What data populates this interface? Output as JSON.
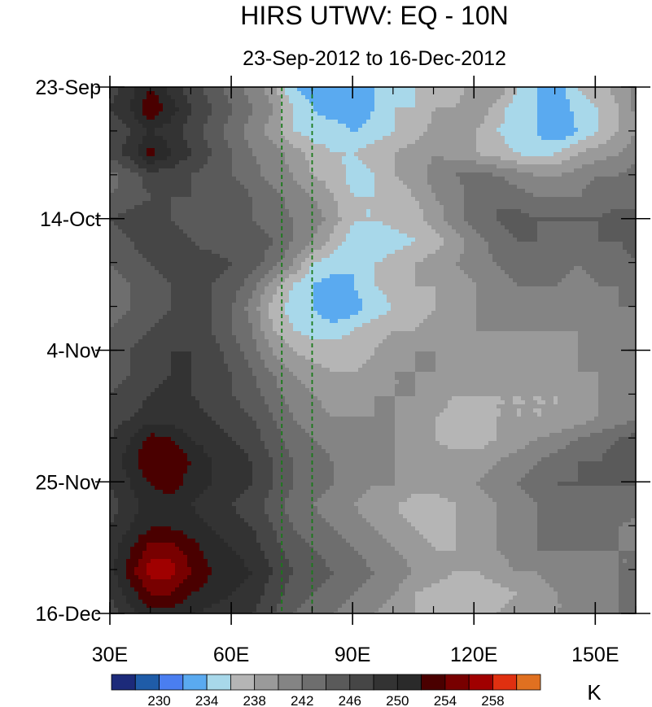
{
  "chart_data": {
    "type": "heatmap",
    "title": "HIRS UTWV: EQ - 10N",
    "subtitle": "23-Sep-2012 to 16-Dec-2012",
    "x_axis": {
      "range": [
        30,
        160
      ],
      "unit": "degrees East",
      "ticks": [
        {
          "value": 30,
          "label": "30E"
        },
        {
          "value": 60,
          "label": "60E"
        },
        {
          "value": 90,
          "label": "90E"
        },
        {
          "value": 120,
          "label": "120E"
        },
        {
          "value": 150,
          "label": "150E"
        }
      ],
      "minor_step": 10
    },
    "y_axis": {
      "range": [
        "2012-09-23",
        "2012-12-16"
      ],
      "direction": "time increases downward",
      "ticks": [
        {
          "value": "2012-09-23",
          "label": "23-Sep"
        },
        {
          "value": "2012-10-14",
          "label": "14-Oct"
        },
        {
          "value": "2012-11-04",
          "label": "4-Nov"
        },
        {
          "value": "2012-11-25",
          "label": "25-Nov"
        },
        {
          "value": "2012-12-16",
          "label": "16-Dec"
        }
      ],
      "minor_step_days": 7
    },
    "reference_lines": [
      {
        "longitude": 72.5,
        "style": "dashed",
        "color": "#1a7a1a"
      },
      {
        "longitude": 80,
        "style": "dashed",
        "color": "#1a7a1a"
      }
    ],
    "colorbar": {
      "unit_label": "K",
      "levels": [
        228,
        230,
        232,
        234,
        236,
        238,
        240,
        242,
        244,
        246,
        248,
        250,
        252,
        254,
        256,
        258,
        260
      ],
      "labels": [
        "230",
        "234",
        "238",
        "242",
        "246",
        "250",
        "254",
        "258"
      ],
      "colors": [
        "#1c2a7a",
        "#1f5ca8",
        "#4a7ef0",
        "#5aaaf0",
        "#a8d8ea",
        "#b5b5b5",
        "#9a9a9a",
        "#848484",
        "#6e6e6e",
        "#5a5a5a",
        "#464646",
        "#333333",
        "#2a2a2a",
        "#4a0000",
        "#780000",
        "#a00000",
        "#e03010",
        "#e07020"
      ]
    },
    "field": {
      "nx": 27,
      "ny": 25,
      "values": [
        [
          247,
          249,
          252,
          249,
          247,
          245,
          243,
          241,
          239,
          234,
          233,
          232,
          233,
          234,
          235,
          236,
          238,
          237,
          239,
          240,
          236,
          234,
          233,
          236,
          237,
          239,
          241
        ],
        [
          248,
          250,
          254,
          251,
          248,
          246,
          244,
          242,
          240,
          236,
          234,
          233,
          232,
          234,
          236,
          236,
          238,
          238,
          240,
          237,
          235,
          234,
          232,
          235,
          236,
          238,
          241
        ],
        [
          246,
          248,
          250,
          249,
          247,
          245,
          243,
          241,
          239,
          236,
          235,
          235,
          234,
          235,
          236,
          237,
          239,
          238,
          238,
          236,
          235,
          234,
          232,
          234,
          236,
          238,
          240
        ],
        [
          247,
          249,
          253,
          250,
          248,
          246,
          244,
          242,
          241,
          239,
          237,
          236,
          236,
          237,
          238,
          239,
          240,
          239,
          238,
          237,
          236,
          235,
          236,
          238,
          239,
          240,
          242
        ],
        [
          243,
          245,
          247,
          247,
          246,
          245,
          244,
          243,
          241,
          240,
          238,
          237,
          235,
          236,
          238,
          239,
          241,
          242,
          243,
          242,
          241,
          240,
          240,
          241,
          242,
          242,
          243
        ],
        [
          244,
          245,
          246,
          246,
          246,
          245,
          245,
          244,
          243,
          241,
          240,
          238,
          236,
          236,
          237,
          238,
          240,
          241,
          243,
          244,
          243,
          242,
          242,
          242,
          243,
          243,
          243
        ],
        [
          246,
          247,
          247,
          246,
          245,
          245,
          244,
          244,
          243,
          242,
          241,
          239,
          236,
          236,
          237,
          237,
          239,
          241,
          243,
          244,
          245,
          244,
          244,
          244,
          244,
          245,
          245
        ],
        [
          245,
          246,
          247,
          247,
          246,
          245,
          245,
          245,
          244,
          242,
          240,
          237,
          235,
          234,
          235,
          236,
          237,
          239,
          241,
          243,
          244,
          244,
          243,
          243,
          244,
          244,
          245
        ],
        [
          244,
          245,
          246,
          247,
          247,
          247,
          246,
          245,
          243,
          240,
          236,
          235,
          234,
          236,
          237,
          238,
          239,
          240,
          241,
          242,
          243,
          243,
          243,
          242,
          243,
          243,
          244
        ],
        [
          243,
          244,
          245,
          246,
          246,
          246,
          245,
          243,
          239,
          236,
          234,
          233,
          234,
          236,
          237,
          238,
          238,
          239,
          240,
          241,
          242,
          242,
          242,
          241,
          242,
          242,
          243
        ],
        [
          243,
          244,
          245,
          246,
          247,
          246,
          244,
          241,
          237,
          235,
          234,
          232,
          233,
          235,
          236,
          237,
          238,
          239,
          240,
          240,
          241,
          241,
          241,
          241,
          241,
          242,
          242
        ],
        [
          244,
          245,
          246,
          247,
          247,
          246,
          244,
          242,
          238,
          236,
          235,
          235,
          236,
          237,
          238,
          238,
          239,
          239,
          240,
          240,
          240,
          240,
          240,
          240,
          241,
          241,
          242
        ],
        [
          245,
          246,
          247,
          248,
          248,
          247,
          245,
          243,
          240,
          238,
          237,
          237,
          237,
          238,
          239,
          240,
          240,
          240,
          240,
          239,
          239,
          239,
          239,
          240,
          240,
          241,
          241
        ],
        [
          245,
          246,
          247,
          248,
          248,
          247,
          246,
          244,
          242,
          240,
          239,
          238,
          238,
          239,
          240,
          240,
          240,
          239,
          239,
          239,
          239,
          239,
          239,
          240,
          240,
          241,
          241
        ],
        [
          246,
          247,
          248,
          249,
          248,
          247,
          246,
          245,
          243,
          241,
          240,
          239,
          239,
          240,
          240,
          240,
          239,
          238,
          238,
          238,
          238,
          238,
          238,
          239,
          240,
          240,
          241
        ],
        [
          247,
          248,
          249,
          249,
          249,
          248,
          247,
          246,
          244,
          242,
          241,
          240,
          240,
          240,
          240,
          239,
          238,
          237,
          237,
          238,
          238,
          238,
          238,
          239,
          240,
          241,
          242
        ],
        [
          248,
          250,
          253,
          252,
          250,
          249,
          248,
          247,
          245,
          243,
          242,
          241,
          241,
          240,
          240,
          239,
          238,
          237,
          237,
          238,
          239,
          240,
          241,
          242,
          243,
          244,
          245
        ],
        [
          249,
          251,
          254,
          254,
          252,
          250,
          249,
          248,
          246,
          244,
          243,
          242,
          241,
          241,
          240,
          240,
          239,
          239,
          239,
          240,
          241,
          242,
          243,
          244,
          244,
          245,
          245
        ],
        [
          248,
          250,
          252,
          253,
          251,
          250,
          249,
          248,
          246,
          244,
          243,
          242,
          241,
          240,
          240,
          239,
          239,
          239,
          240,
          241,
          242,
          243,
          244,
          244,
          244,
          244,
          244
        ],
        [
          247,
          249,
          251,
          251,
          250,
          249,
          248,
          247,
          245,
          243,
          242,
          241,
          240,
          239,
          238,
          237,
          237,
          238,
          239,
          240,
          241,
          242,
          243,
          243,
          243,
          243,
          243
        ],
        [
          248,
          250,
          252,
          252,
          251,
          250,
          249,
          248,
          246,
          244,
          243,
          242,
          241,
          240,
          239,
          238,
          237,
          238,
          239,
          240,
          241,
          242,
          243,
          243,
          243,
          242,
          241
        ],
        [
          249,
          252,
          255,
          255,
          253,
          251,
          250,
          249,
          247,
          245,
          244,
          243,
          242,
          241,
          240,
          239,
          238,
          238,
          239,
          240,
          241,
          242,
          242,
          242,
          242,
          242,
          242
        ],
        [
          249,
          253,
          257,
          257,
          254,
          252,
          251,
          250,
          248,
          246,
          245,
          244,
          243,
          242,
          241,
          240,
          239,
          238,
          238,
          239,
          240,
          240,
          241,
          241,
          241,
          242,
          242
        ],
        [
          248,
          251,
          254,
          254,
          252,
          251,
          250,
          249,
          247,
          245,
          244,
          243,
          242,
          241,
          240,
          238,
          237,
          236,
          236,
          237,
          238,
          239,
          240,
          240,
          241,
          242,
          243
        ],
        [
          247,
          249,
          251,
          251,
          250,
          249,
          249,
          248,
          246,
          244,
          243,
          242,
          241,
          240,
          239,
          238,
          237,
          237,
          237,
          238,
          239,
          239,
          240,
          240,
          241,
          242,
          243
        ]
      ]
    }
  }
}
